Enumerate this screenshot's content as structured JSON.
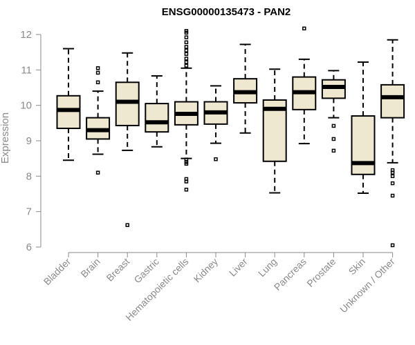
{
  "chart_data": {
    "type": "boxplot",
    "title": "ENSG00000135473 - PAN2",
    "xlabel": "",
    "ylabel": "Expression",
    "ylim": [
      6,
      12
    ],
    "yticks": [
      6,
      7,
      8,
      9,
      10,
      11,
      12
    ],
    "grid": false,
    "box_fill": "#efe8d0",
    "categories": [
      "Bladder",
      "Brain",
      "Breast",
      "Gastric",
      "Hematopoietic cells",
      "Kidney",
      "Liver",
      "Lung",
      "Pancreas",
      "Prostate",
      "Skin",
      "Unknown / Other"
    ],
    "boxes": [
      {
        "min": 8.45,
        "q1": 9.35,
        "median": 9.87,
        "q3": 10.27,
        "max": 11.6,
        "outliers": []
      },
      {
        "min": 8.62,
        "q1": 9.05,
        "median": 9.3,
        "q3": 9.65,
        "max": 10.4,
        "outliers": [
          8.1,
          10.65,
          10.92,
          11.05
        ]
      },
      {
        "min": 8.73,
        "q1": 9.43,
        "median": 10.1,
        "q3": 10.65,
        "max": 11.48,
        "outliers": [
          6.62
        ]
      },
      {
        "min": 8.83,
        "q1": 9.25,
        "median": 9.52,
        "q3": 10.05,
        "max": 10.83,
        "outliers": []
      },
      {
        "min": 8.5,
        "q1": 9.45,
        "median": 9.76,
        "q3": 10.1,
        "max": 11.05,
        "outliers": [
          7.62,
          7.85,
          7.92,
          8.35,
          8.4,
          8.47,
          11.12,
          11.22,
          11.32,
          11.45,
          11.55,
          11.65,
          11.78,
          11.92,
          12.05,
          12.1
        ]
      },
      {
        "min": 8.93,
        "q1": 9.47,
        "median": 9.8,
        "q3": 10.1,
        "max": 10.55,
        "outliers": [
          8.48
        ]
      },
      {
        "min": 9.22,
        "q1": 10.07,
        "median": 10.37,
        "q3": 10.75,
        "max": 11.72,
        "outliers": []
      },
      {
        "min": 7.53,
        "q1": 8.42,
        "median": 9.9,
        "q3": 10.15,
        "max": 11.02,
        "outliers": []
      },
      {
        "min": 8.92,
        "q1": 9.88,
        "median": 10.37,
        "q3": 10.8,
        "max": 11.3,
        "outliers": [
          12.17
        ]
      },
      {
        "min": 9.65,
        "q1": 10.2,
        "median": 10.52,
        "q3": 10.72,
        "max": 10.98,
        "outliers": [
          8.72,
          9.05,
          9.42
        ]
      },
      {
        "min": 7.52,
        "q1": 8.05,
        "median": 8.37,
        "q3": 9.7,
        "max": 11.22,
        "outliers": []
      },
      {
        "min": 8.38,
        "q1": 9.65,
        "median": 10.23,
        "q3": 10.58,
        "max": 11.85,
        "outliers": [
          6.05,
          7.45,
          7.8,
          8.0,
          8.1,
          8.17
        ]
      }
    ]
  }
}
